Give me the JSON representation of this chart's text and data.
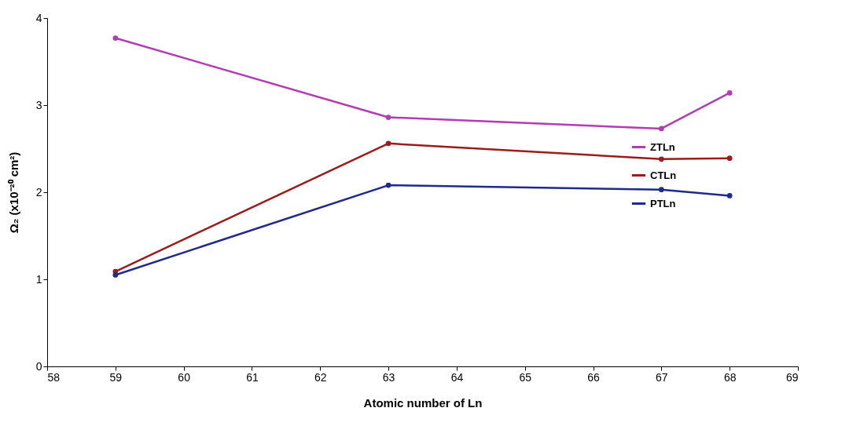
{
  "chart_data": {
    "type": "line",
    "xlabel": "Atomic number of Ln",
    "ylabel": "Ω₂ (x10⁻²⁰ cm²)",
    "x": [
      59,
      63,
      67,
      68
    ],
    "series": [
      {
        "name": "ZTLn",
        "color": "#b23cb2",
        "values": [
          3.77,
          2.86,
          2.73,
          3.14
        ]
      },
      {
        "name": "CTLn",
        "color": "#9b1c1c",
        "values": [
          1.09,
          2.56,
          2.38,
          2.39
        ]
      },
      {
        "name": "PTLn",
        "color": "#1f2a8a",
        "values": [
          1.05,
          2.08,
          2.03,
          1.96
        ]
      }
    ],
    "xlim": [
      58,
      69
    ],
    "xticks": [
      58,
      59,
      60,
      61,
      62,
      63,
      64,
      65,
      66,
      67,
      68,
      69
    ],
    "ylim": [
      0,
      4
    ],
    "yticks": [
      0,
      1,
      2,
      3,
      4
    ],
    "legend": "top right",
    "marker": "circle",
    "line_style": "solid",
    "grid": false
  }
}
